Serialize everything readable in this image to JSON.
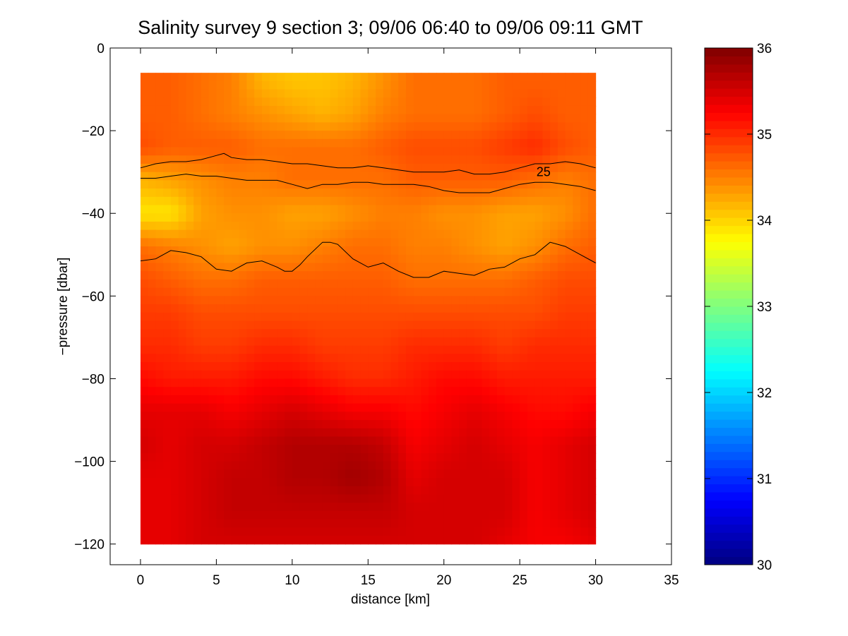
{
  "chart_data": {
    "type": "heatmap",
    "title": "Salinity survey 9 section 3; 09/06 06:40 to 09/06 09:11 GMT",
    "xlabel": "distance [km]",
    "ylabel": "−pressure [dbar]",
    "xlim": [
      -2,
      35
    ],
    "ylim": [
      -125,
      0
    ],
    "xticks": [
      0,
      5,
      10,
      15,
      20,
      25,
      30,
      35
    ],
    "yticks": [
      0,
      -20,
      -40,
      -60,
      -80,
      -100,
      -120
    ],
    "xtick_labels": [
      "0",
      "5",
      "10",
      "15",
      "20",
      "25",
      "30",
      "35"
    ],
    "ytick_labels": [
      "0",
      "−20",
      "−40",
      "−60",
      "−80",
      "−100",
      "−120"
    ],
    "colorbar": {
      "range": [
        30,
        36
      ],
      "ticks": [
        30,
        31,
        32,
        33,
        34,
        35,
        36
      ],
      "tick_labels": [
        "30",
        "31",
        "32",
        "33",
        "34",
        "35",
        "36"
      ],
      "colormap": "jet"
    },
    "colormap": "jet",
    "x": [
      0,
      2,
      4,
      6,
      8,
      10,
      12,
      14,
      16,
      18,
      20,
      22,
      24,
      26,
      28,
      30
    ],
    "y": [
      -8,
      -16,
      -24,
      -32,
      -40,
      -48,
      -56,
      -64,
      -72,
      -80,
      -88,
      -96,
      -104,
      -112,
      -120
    ],
    "salinity": [
      [
        34.7,
        34.7,
        34.6,
        34.5,
        34.2,
        34.1,
        34.1,
        34.2,
        34.4,
        34.6,
        34.6,
        34.6,
        34.7,
        34.7,
        34.7,
        34.7
      ],
      [
        34.7,
        34.7,
        34.6,
        34.5,
        34.4,
        34.3,
        34.2,
        34.3,
        34.5,
        34.6,
        34.6,
        34.6,
        34.7,
        34.8,
        34.7,
        34.7
      ],
      [
        34.8,
        34.7,
        34.7,
        34.7,
        34.6,
        34.6,
        34.6,
        34.6,
        34.7,
        34.8,
        34.8,
        34.8,
        34.9,
        35.0,
        34.8,
        34.7
      ],
      [
        34.2,
        34.3,
        34.4,
        34.5,
        34.5,
        34.6,
        34.6,
        34.6,
        34.6,
        34.7,
        34.7,
        34.7,
        34.7,
        34.6,
        34.5,
        34.6
      ],
      [
        33.9,
        33.9,
        34.3,
        34.4,
        34.4,
        34.3,
        34.3,
        34.4,
        34.5,
        34.5,
        34.4,
        34.4,
        34.3,
        34.3,
        34.4,
        34.6
      ],
      [
        34.6,
        34.5,
        34.4,
        34.3,
        34.4,
        34.4,
        34.5,
        34.6,
        34.6,
        34.5,
        34.5,
        34.4,
        34.3,
        34.4,
        34.6,
        34.7
      ],
      [
        34.8,
        34.7,
        34.6,
        34.6,
        34.7,
        34.7,
        34.7,
        34.7,
        34.7,
        34.6,
        34.6,
        34.6,
        34.6,
        34.7,
        34.8,
        34.8
      ],
      [
        34.9,
        34.9,
        34.8,
        34.8,
        34.8,
        34.8,
        34.8,
        34.8,
        34.8,
        34.8,
        34.8,
        34.8,
        34.8,
        34.8,
        34.9,
        34.9
      ],
      [
        35.0,
        35.0,
        34.9,
        34.9,
        35.0,
        35.0,
        34.9,
        34.9,
        34.9,
        35.0,
        35.0,
        35.0,
        34.9,
        35.0,
        35.0,
        35.0
      ],
      [
        35.2,
        35.1,
        35.1,
        35.1,
        35.2,
        35.2,
        35.1,
        35.0,
        35.0,
        35.1,
        35.2,
        35.2,
        35.1,
        35.1,
        35.1,
        35.1
      ],
      [
        35.4,
        35.4,
        35.4,
        35.3,
        35.4,
        35.5,
        35.4,
        35.3,
        35.3,
        35.2,
        35.3,
        35.4,
        35.3,
        35.2,
        35.2,
        35.3
      ],
      [
        35.5,
        35.4,
        35.5,
        35.5,
        35.6,
        35.7,
        35.7,
        35.7,
        35.6,
        35.3,
        35.4,
        35.5,
        35.4,
        35.3,
        35.4,
        35.5
      ],
      [
        35.4,
        35.4,
        35.5,
        35.6,
        35.6,
        35.7,
        35.7,
        35.8,
        35.7,
        35.4,
        35.5,
        35.5,
        35.5,
        35.3,
        35.4,
        35.5
      ],
      [
        35.4,
        35.4,
        35.5,
        35.6,
        35.6,
        35.6,
        35.6,
        35.6,
        35.6,
        35.5,
        35.5,
        35.5,
        35.5,
        35.3,
        35.4,
        35.5
      ],
      [
        35.4,
        35.4,
        35.5,
        35.5,
        35.5,
        35.5,
        35.5,
        35.5,
        35.5,
        35.5,
        35.5,
        35.5,
        35.4,
        35.3,
        35.3,
        35.4
      ]
    ],
    "contours": [
      {
        "name": "",
        "x": [
          0,
          1,
          2,
          3,
          4,
          5,
          5.5,
          6,
          7,
          8,
          9,
          10,
          11,
          12,
          13,
          14,
          15,
          16,
          17,
          18,
          19,
          20,
          21,
          22,
          23,
          24,
          25,
          26,
          27,
          28,
          29,
          30
        ],
        "y": [
          -29,
          -28,
          -27.5,
          -27.5,
          -27,
          -26,
          -25.5,
          -26.5,
          -27,
          -27,
          -27.5,
          -28,
          -28,
          -28.5,
          -29,
          -29,
          -28.5,
          -29,
          -29.5,
          -30,
          -30,
          -30,
          -29.5,
          -30.5,
          -30.5,
          -30,
          -29,
          -28,
          -28,
          -27.5,
          -28,
          -29
        ]
      },
      {
        "name": "25",
        "x": [
          0,
          1,
          2,
          3,
          4,
          5,
          6,
          7,
          8,
          9,
          10,
          11,
          12,
          13,
          14,
          15,
          16,
          17,
          18,
          19,
          20,
          21,
          22,
          23,
          24,
          25,
          26,
          27,
          28,
          29,
          30
        ],
        "y": [
          -31.5,
          -31.5,
          -31,
          -30.5,
          -31,
          -31,
          -31.5,
          -32,
          -32,
          -32,
          -33,
          -34,
          -33,
          -33,
          -32.5,
          -32.5,
          -33,
          -33,
          -33,
          -33.5,
          -34.5,
          -35,
          -35,
          -35,
          -34,
          -33,
          -32.5,
          -32.5,
          -33,
          -33.5,
          -34.5
        ]
      },
      {
        "name": "",
        "x": [
          0,
          1,
          2,
          3,
          4,
          4.5,
          5,
          6,
          7,
          8,
          9,
          9.5,
          10,
          10.5,
          11,
          12,
          12.5,
          13,
          14,
          15,
          16,
          17,
          18,
          19,
          20,
          21,
          22,
          23,
          24,
          25,
          26,
          27,
          28,
          29,
          30
        ],
        "y": [
          -51.5,
          -51,
          -49,
          -49.5,
          -50.5,
          -52,
          -53.5,
          -54,
          -52,
          -51.5,
          -53,
          -54,
          -54,
          -52.5,
          -50.5,
          -47,
          -47,
          -47.5,
          -51,
          -53,
          -52,
          -54,
          -55.5,
          -55.5,
          -54,
          -54.5,
          -55,
          -53.5,
          -53,
          -51,
          -50,
          -47,
          -48,
          -50,
          -52
        ]
      }
    ],
    "contour_labels": [
      {
        "text": "25",
        "x": 26.1,
        "y": -31
      }
    ]
  }
}
